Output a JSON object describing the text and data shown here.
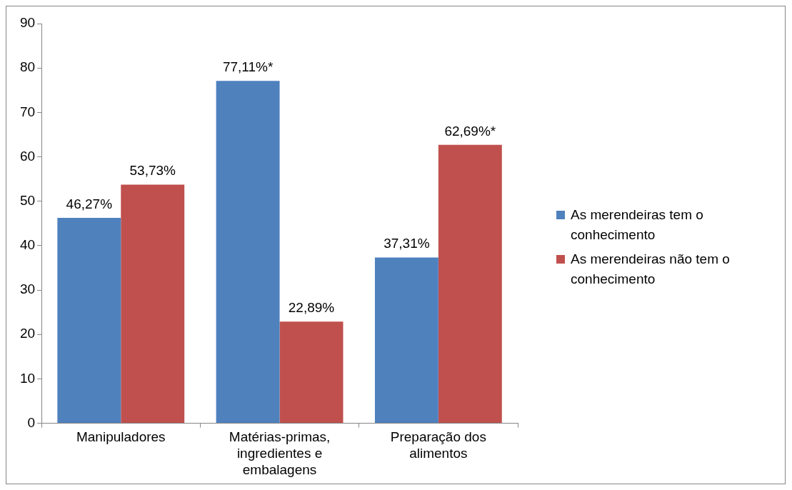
{
  "chart_data": {
    "type": "bar",
    "categories": [
      "Manipuladores",
      "Matérias-primas, ingredientes e embalagens",
      "Preparação dos alimentos"
    ],
    "series": [
      {
        "name": "As merendeiras tem o conhecimento",
        "color": "#4f81bd",
        "values": [
          46.27,
          77.11,
          37.31
        ],
        "value_labels": [
          "46,27%",
          "77,11%*",
          "37,31%"
        ]
      },
      {
        "name": "As merendeiras não tem o conhecimento",
        "color": "#c0504d",
        "values": [
          53.73,
          22.89,
          62.69
        ],
        "value_labels": [
          "53,73%",
          "22,89%",
          "62,69%*"
        ]
      }
    ],
    "ylim": [
      0,
      90
    ],
    "yticks": [
      0,
      10,
      20,
      30,
      40,
      50,
      60,
      70,
      80,
      90
    ],
    "grid": false,
    "legend": "right"
  }
}
